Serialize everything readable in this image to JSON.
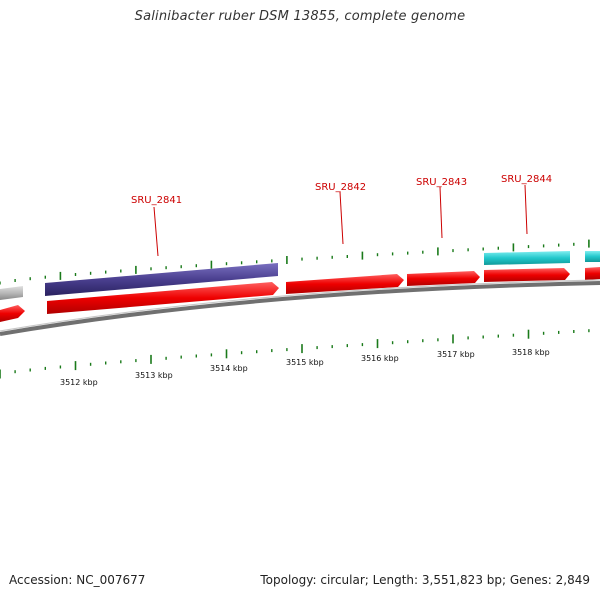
{
  "title": "Salinibacter ruber DSM 13855, complete genome",
  "footer": {
    "accession": "Accession: NC_007677",
    "stats": "Topology: circular; Length: 3,551,823 bp; Genes: 2,849"
  },
  "gene_labels": [
    "SRU_2841",
    "SRU_2842",
    "SRU_2843",
    "SRU_2844"
  ],
  "kbp_labels": [
    "3512 kbp",
    "3513 kbp",
    "3514 kbp",
    "3515 kbp",
    "3516 kbp",
    "3517 kbp",
    "3518 kbp"
  ],
  "colors": {
    "gene_forward": "#ee0000",
    "gene_purple": "#4a3f8f",
    "gene_cyan": "#22c8cc",
    "gene_grey": "#b8b8b8",
    "backbone": "#888888",
    "tick": "#1a7a1a",
    "label": "#cc0000"
  }
}
